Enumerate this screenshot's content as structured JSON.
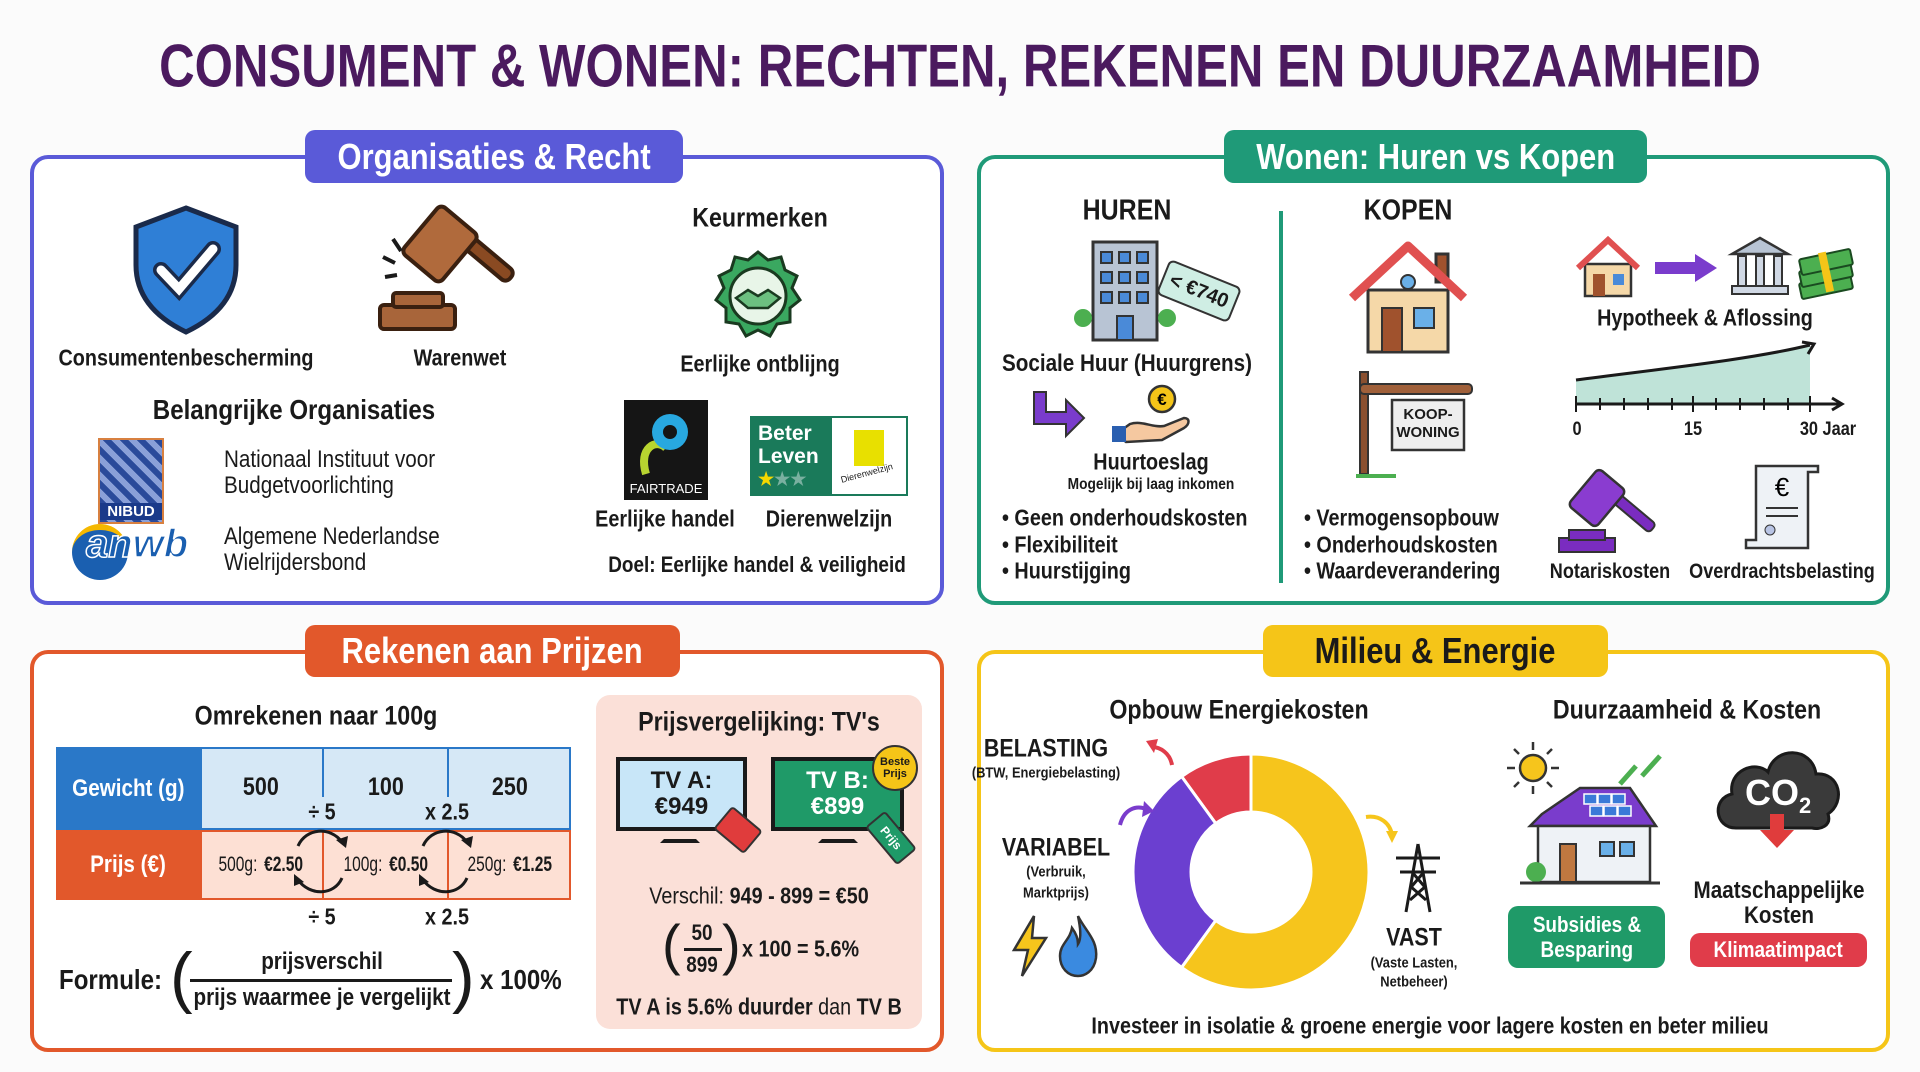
{
  "title": "CONSUMENT & WONEN: RECHTEN, REKENEN EN DUURZAAMHEID",
  "colors": {
    "title": "#4b1a5f",
    "organisaties": "#5a5ad8",
    "wonen": "#1f9a78",
    "rekenen": "#e2582b",
    "milieu": "#f5c518"
  },
  "organisaties": {
    "heading": "Organisaties & Recht",
    "consumentenbescherming": "Consumentenbescherming",
    "warenwet": "Warenwet",
    "keurmerken": "Keurmerken",
    "eerlijk_label": "Eerlijke ontblijng",
    "belangrijke": "Belangrijke Organisaties",
    "nibud_logo": "NIBUD",
    "nibud_text": [
      "Nationaal Instituut voor",
      "Budgetvoorlichting"
    ],
    "anwb_logo": "anwb",
    "anwb_text": [
      "Algemene Nederlandse",
      "Wielrijdersbond"
    ],
    "fairtrade_logo": "FAIRTRADE",
    "beter_leven_logo": [
      "Beter",
      "Leven"
    ],
    "beter_leven_stars": 1,
    "dierenbescherming_logo": "Dierenwelzijn",
    "eerlijke_handel": "Eerlijke handel",
    "dierenwelzijn": "Dierenwelzijn",
    "doel": "Doel: Eerlijke handel & veiligheid"
  },
  "wonen": {
    "heading": "Wonen: Huren vs Kopen",
    "huren": "HUREN",
    "rent_tag": "< €740",
    "sociale_huur": "Sociale Huur (Huurgrens)",
    "huurtoeslag": "Huurtoeslag",
    "huurtoeslag_sub": "Mogelijk bij laag inkomen",
    "huren_bullets": [
      "Geen onderhoudskosten",
      "Flexibiliteit",
      "Huurstijging"
    ],
    "kopen": "KOPEN",
    "sign": [
      "KOOP-",
      "WONING"
    ],
    "kopen_bullets": [
      "Vermogensopbouw",
      "Onderhoudskosten",
      "Waardeverandering"
    ],
    "hypotheek": "Hypotheek & Aflossing",
    "timeline_labels": [
      "0",
      "15",
      "30 Jaar"
    ],
    "notaris": "Notariskosten",
    "overdracht": "Overdrachtsbelasting"
  },
  "rekenen": {
    "heading": "Rekenen aan Prijzen",
    "omrekenen": "Omrekenen naar 100g",
    "table": {
      "row_headers": [
        "Gewicht (g)",
        "Prijs (€)"
      ],
      "weights": [
        "500",
        "100",
        "250"
      ],
      "prices": [
        [
          "500g: ",
          "€2.50"
        ],
        [
          "100g: ",
          "€0.50"
        ],
        [
          "250g: ",
          "€1.25"
        ]
      ],
      "ops": [
        "÷ 5",
        "x 2.5"
      ]
    },
    "formule_label": "Formule:",
    "formule_num": "prijsverschil",
    "formule_den": "prijs waarmee je vergelijkt",
    "formule_mult": "x 100%",
    "tv": {
      "title": "Prijsvergelijking: TV's",
      "a": [
        "TV A:",
        "€949"
      ],
      "b": [
        "TV B:",
        "€899"
      ],
      "badge": [
        "Beste",
        "Prijs"
      ],
      "tag": "Prijs",
      "verschil_label": "Verschil: ",
      "verschil_value": "949 - 899 = €50",
      "frac_num": "50",
      "frac_den": "899",
      "frac_rest": "x 100 = 5.6%",
      "conclusion": [
        "TV A is ",
        "5.6% duurder",
        " dan ",
        "TV B"
      ]
    }
  },
  "milieu": {
    "heading": "Milieu & Energie",
    "opbouw": "Opbouw Energiekosten",
    "segments": [
      {
        "name": "BELASTING",
        "sub": "(BTW, Energiebelasting)",
        "color": "#e03c4a",
        "share": 0.1
      },
      {
        "name": "VARIABEL",
        "sub": "(Verbruik, Marktprijs)",
        "color": "#6b3fd0",
        "share": 0.3
      },
      {
        "name": "VAST",
        "sub": "(Vaste Lasten, Netbeheer)",
        "color": "#f6c51c",
        "share": 0.6
      }
    ],
    "variabel_sub": [
      "(Verbruik,",
      "Marktprijs)"
    ],
    "vast_sub": [
      "(Vaste Lasten,",
      "Netbeheer)"
    ],
    "duurzaamheid": "Duurzaamheid & Kosten",
    "subsidies": [
      "Subsidies &",
      "Besparing"
    ],
    "co2": "CO",
    "co2_sub": "2",
    "maatschappelijk": [
      "Maatschappelijke",
      "Kosten"
    ],
    "klimaat": "Klimaatimpact",
    "footer": "Investeer in isolatie & groene energie voor lagere kosten en beter milieu"
  }
}
